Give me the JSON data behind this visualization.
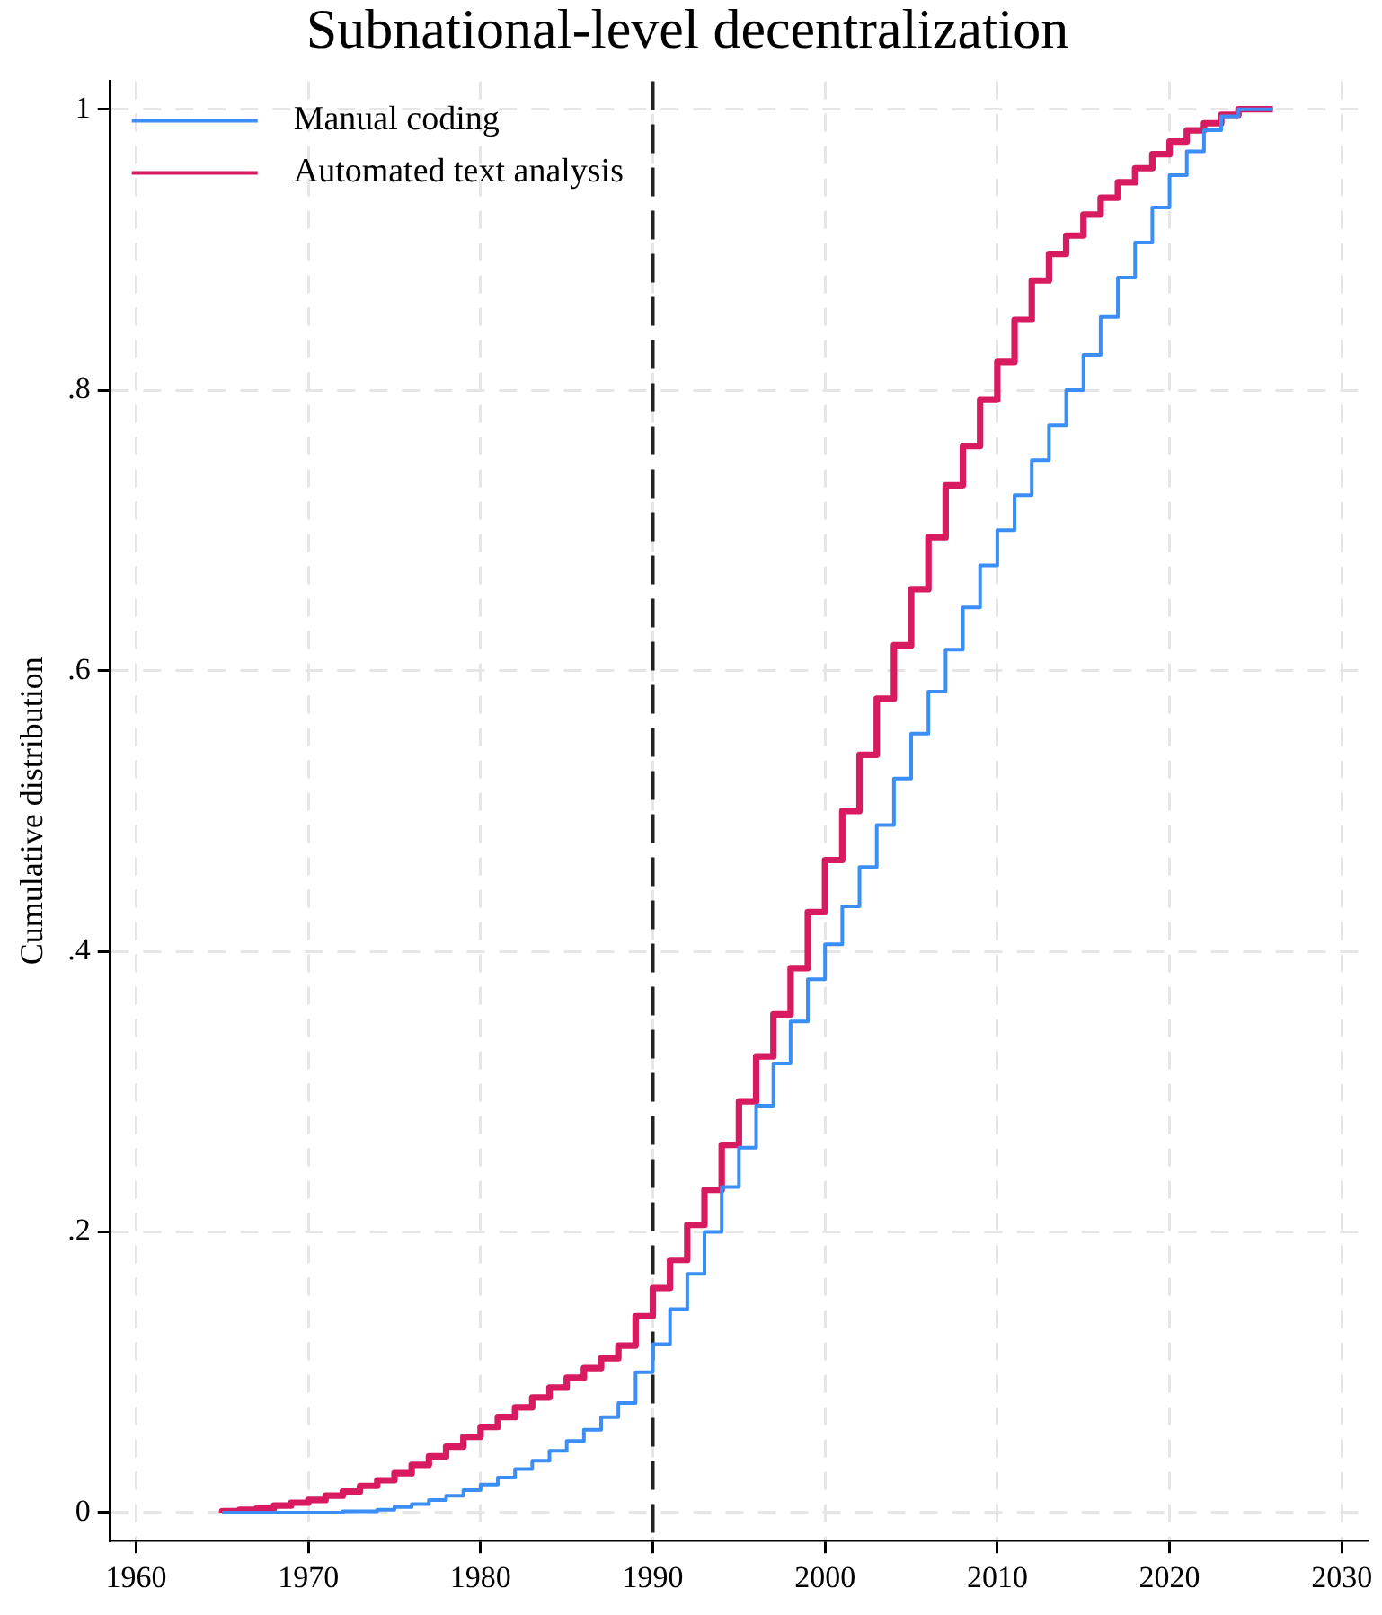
{
  "chart_data": {
    "type": "step",
    "title": "Subnational-level decentralization",
    "ylabel": "Cumulative distribution",
    "x": [
      1965,
      1966,
      1967,
      1968,
      1969,
      1970,
      1971,
      1972,
      1973,
      1974,
      1975,
      1976,
      1977,
      1978,
      1979,
      1980,
      1981,
      1982,
      1983,
      1984,
      1985,
      1986,
      1987,
      1988,
      1989,
      1990,
      1991,
      1992,
      1993,
      1994,
      1995,
      1996,
      1997,
      1998,
      1999,
      2000,
      2001,
      2002,
      2003,
      2004,
      2005,
      2006,
      2007,
      2008,
      2009,
      2010,
      2011,
      2012,
      2013,
      2014,
      2015,
      2016,
      2017,
      2018,
      2019,
      2020,
      2021,
      2022,
      2023,
      2024,
      2025,
      2026
    ],
    "series": [
      {
        "name": "Manual coding",
        "color": "#3a8ef6",
        "values": [
          0,
          0,
          0,
          0,
          0,
          0,
          0,
          0,
          0.001,
          0.001,
          0.002,
          0.004,
          0.006,
          0.009,
          0.012,
          0.016,
          0.02,
          0.025,
          0.031,
          0.037,
          0.044,
          0.051,
          0.059,
          0.068,
          0.078,
          0.1,
          0.12,
          0.145,
          0.17,
          0.2,
          0.232,
          0.26,
          0.29,
          0.32,
          0.35,
          0.38,
          0.405,
          0.432,
          0.46,
          0.49,
          0.523,
          0.555,
          0.585,
          0.615,
          0.645,
          0.675,
          0.7,
          0.725,
          0.75,
          0.775,
          0.8,
          0.825,
          0.852,
          0.88,
          0.905,
          0.93,
          0.953,
          0.97,
          0.985,
          0.995,
          1,
          1
        ]
      },
      {
        "name": "Automated text analysis",
        "color": "#d81b60",
        "values": [
          0,
          0.001,
          0.002,
          0.003,
          0.005,
          0.007,
          0.009,
          0.012,
          0.015,
          0.019,
          0.023,
          0.028,
          0.034,
          0.04,
          0.047,
          0.054,
          0.061,
          0.068,
          0.075,
          0.082,
          0.089,
          0.096,
          0.103,
          0.11,
          0.119,
          0.14,
          0.16,
          0.18,
          0.205,
          0.23,
          0.262,
          0.293,
          0.325,
          0.355,
          0.388,
          0.428,
          0.465,
          0.5,
          0.54,
          0.58,
          0.618,
          0.658,
          0.695,
          0.732,
          0.76,
          0.793,
          0.82,
          0.85,
          0.878,
          0.897,
          0.91,
          0.925,
          0.937,
          0.948,
          0.958,
          0.968,
          0.977,
          0.985,
          0.99,
          0.996,
          1,
          1
        ]
      }
    ],
    "xlim": [
      1958.5,
      2031.5
    ],
    "xticks": [
      1960,
      1970,
      1980,
      1990,
      2000,
      2010,
      2020,
      2030
    ],
    "ylim": [
      -0.02,
      1.02
    ],
    "yticks": [
      {
        "value": 0,
        "label": "0"
      },
      {
        "value": 0.2,
        "label": ".2"
      },
      {
        "value": 0.4,
        "label": ".4"
      },
      {
        "value": 0.6,
        "label": ".6"
      },
      {
        "value": 0.8,
        "label": ".8"
      },
      {
        "value": 1,
        "label": "1"
      }
    ],
    "ref_lines": [
      {
        "axis": "x",
        "value": 1990,
        "color": "#222222",
        "line_style": "dashed"
      }
    ],
    "grid": true,
    "legend": "top left",
    "marker": "none",
    "line_style": "solid"
  }
}
